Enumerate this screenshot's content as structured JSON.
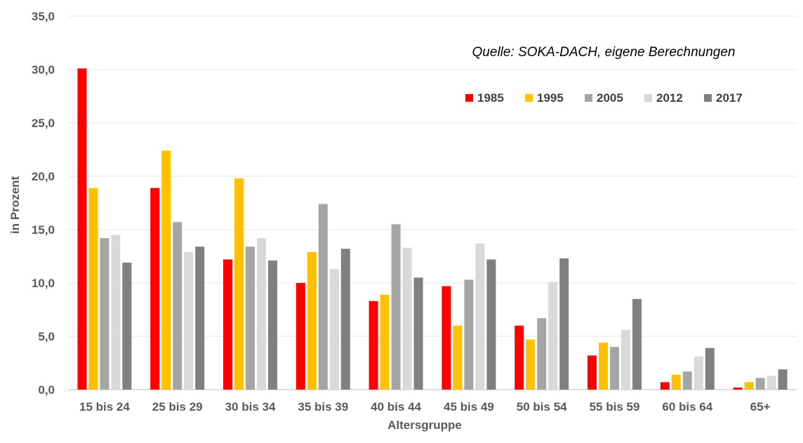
{
  "chart_data": {
    "type": "bar",
    "annotation": "Quelle: SOKA-DACH, eigene Berechnungen",
    "xlabel": "Altersgruppe",
    "ylabel": "in Prozent",
    "ylim": [
      0,
      35
    ],
    "yticks": [
      "0,0",
      "5,0",
      "10,0",
      "15,0",
      "20,0",
      "25,0",
      "30,0",
      "35,0"
    ],
    "grid": true,
    "legend_position": "top-right",
    "categories": [
      "15 bis 24",
      "25 bis 29",
      "30 bis 34",
      "35 bis 39",
      "40 bis 44",
      "45 bis 49",
      "50 bis 54",
      "55 bis 59",
      "60 bis 64",
      "65+"
    ],
    "series": [
      {
        "name": "1985",
        "color": "#ff0000",
        "values": [
          30.1,
          18.9,
          12.2,
          10.0,
          8.3,
          9.7,
          6.0,
          3.2,
          0.7,
          0.2
        ]
      },
      {
        "name": "1995",
        "color": "#ffc000",
        "values": [
          18.9,
          22.4,
          19.8,
          12.9,
          8.9,
          6.0,
          4.7,
          4.4,
          1.4,
          0.7
        ]
      },
      {
        "name": "2005",
        "color": "#a5a5a5",
        "values": [
          14.2,
          15.7,
          13.4,
          17.4,
          15.5,
          10.3,
          6.7,
          4.0,
          1.7,
          1.1
        ]
      },
      {
        "name": "2012",
        "color": "#d9d9d9",
        "values": [
          14.5,
          12.9,
          14.2,
          11.3,
          13.3,
          13.7,
          10.1,
          5.6,
          3.1,
          1.3
        ]
      },
      {
        "name": "2017",
        "color": "#808080",
        "values": [
          11.9,
          13.4,
          12.1,
          13.2,
          10.5,
          12.2,
          12.3,
          8.5,
          3.9,
          1.9
        ]
      }
    ]
  }
}
